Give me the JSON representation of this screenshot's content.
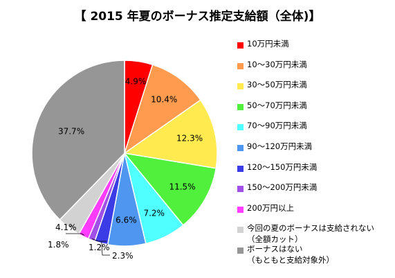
{
  "title": "【 2015 年夏のボーナス推定支給額（全体)】",
  "chart_data": {
    "type": "pie",
    "title": "【 2015 年夏のボーナス推定支給額（全体)】",
    "start_angle_deg": 0,
    "direction": "clockwise",
    "slices": [
      {
        "label": "10万円未満",
        "value": 4.9,
        "display": "4.9%",
        "color": "#ff0000"
      },
      {
        "label": "10～30万円未満",
        "value": 10.4,
        "display": "10.4%",
        "color": "#ff9b4f"
      },
      {
        "label": "30～50万円未満",
        "value": 12.3,
        "display": "12.3%",
        "color": "#ffeb50"
      },
      {
        "label": "50～70万円未満",
        "value": 11.5,
        "display": "11.5%",
        "color": "#50f03c"
      },
      {
        "label": "70～90万円未満",
        "value": 7.2,
        "display": "7.2%",
        "color": "#50ffff"
      },
      {
        "label": "90～120万円未満",
        "value": 6.6,
        "display": "6.6%",
        "color": "#4f96f0"
      },
      {
        "label": "120～150万円未満",
        "value": 2.3,
        "display": "2.3%",
        "color": "#3c3ce6"
      },
      {
        "label": "150～200万円未満",
        "value": 1.2,
        "display": "1.2%",
        "color": "#a050e6"
      },
      {
        "label": "200万円以上",
        "value": 1.8,
        "display": "1.8%",
        "color": "#ff3cff"
      },
      {
        "label": "今回の夏のボーナスは支給されない",
        "sublabel": "（全額カット）",
        "value": 4.1,
        "display": "4.1%",
        "color": "#d2d2d2"
      },
      {
        "label": "ボーナスはない",
        "sublabel": "（もともと支給対象外）",
        "value": 37.7,
        "display": "37.7%",
        "color": "#969696"
      }
    ],
    "legend_position": "right"
  }
}
